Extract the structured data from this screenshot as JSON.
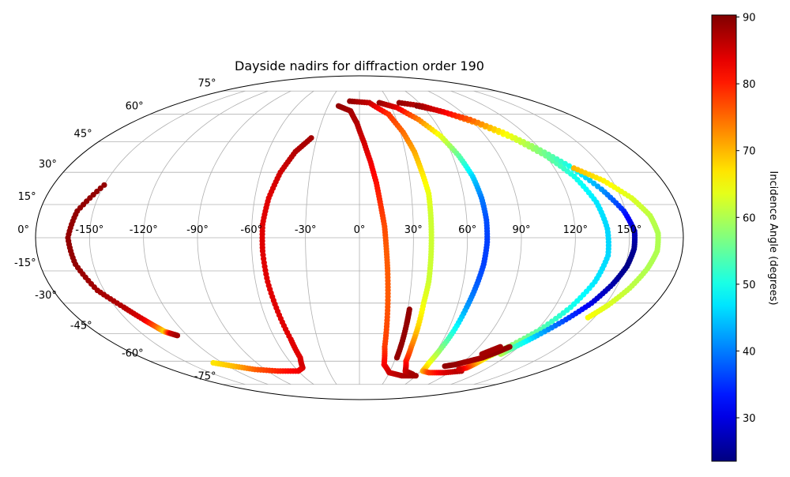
{
  "chart_data": {
    "type": "scatter",
    "projection": "mollweide",
    "title": "Dayside nadirs for diffraction order 190",
    "xlabel": "",
    "ylabel": "",
    "grid": true,
    "lon_ticks": [
      "-150°",
      "-120°",
      "-90°",
      "-60°",
      "-30°",
      "0°",
      "30°",
      "60°",
      "90°",
      "120°",
      "150°"
    ],
    "lat_ticks": [
      "75°",
      "60°",
      "45°",
      "30°",
      "15°",
      "0°",
      "-15°",
      "-30°",
      "-45°",
      "-60°",
      "-75°"
    ],
    "colorbar": {
      "label": "Incidence Angle (degrees)",
      "range": [
        23.5,
        90.3
      ],
      "colormap": "jet",
      "ticks": [
        "30",
        "40",
        "50",
        "60",
        "70",
        "80",
        "90"
      ]
    },
    "series": [
      {
        "values": [
          {
            "x": -150,
            "y": 24,
            "c": 89
          },
          {
            "x": -159,
            "y": 12,
            "c": 89
          },
          {
            "x": -162,
            "y": 0,
            "c": 89
          },
          {
            "x": -160,
            "y": -12,
            "c": 89
          },
          {
            "x": -154,
            "y": -24,
            "c": 88
          },
          {
            "x": -145,
            "y": -32,
            "c": 87
          },
          {
            "x": -139,
            "y": -38,
            "c": 84
          },
          {
            "x": -135,
            "y": -42,
            "c": 75
          },
          {
            "x": -133,
            "y": -44,
            "c": 68
          },
          {
            "x": -130,
            "y": -45,
            "c": 85
          },
          {
            "x": -127,
            "y": -46,
            "c": 88
          }
        ]
      },
      {
        "values": [
          {
            "x": -34,
            "y": 47,
            "c": 88
          },
          {
            "x": -42,
            "y": 40,
            "c": 87
          },
          {
            "x": -48,
            "y": 30,
            "c": 85
          },
          {
            "x": -52,
            "y": 18,
            "c": 84
          },
          {
            "x": -54,
            "y": 6,
            "c": 84
          },
          {
            "x": -54,
            "y": -6,
            "c": 84
          },
          {
            "x": -53,
            "y": -20,
            "c": 84
          },
          {
            "x": -51,
            "y": -34,
            "c": 84
          },
          {
            "x": -49,
            "y": -48,
            "c": 84
          },
          {
            "x": -49,
            "y": -58,
            "c": 84
          },
          {
            "x": -53,
            "y": -64,
            "c": 85
          },
          {
            "x": -60,
            "y": -66,
            "c": 83
          },
          {
            "x": -80,
            "y": -66,
            "c": 80
          },
          {
            "x": -100,
            "y": -65,
            "c": 76
          },
          {
            "x": -115,
            "y": -63,
            "c": 70
          },
          {
            "x": -128,
            "y": -61,
            "c": 67
          }
        ]
      },
      {
        "values": [
          {
            "x": -20,
            "y": 65,
            "c": 89
          },
          {
            "x": -8,
            "y": 62,
            "c": 88
          },
          {
            "x": -2,
            "y": 55,
            "c": 87
          },
          {
            "x": 3,
            "y": 45,
            "c": 85
          },
          {
            "x": 7,
            "y": 35,
            "c": 83
          },
          {
            "x": 10,
            "y": 25,
            "c": 81
          },
          {
            "x": 12,
            "y": 15,
            "c": 79
          },
          {
            "x": 14,
            "y": 5,
            "c": 77
          },
          {
            "x": 15,
            "y": -5,
            "c": 76
          },
          {
            "x": 16,
            "y": -15,
            "c": 76
          },
          {
            "x": 17,
            "y": -27,
            "c": 76
          },
          {
            "x": 18,
            "y": -40,
            "c": 77
          },
          {
            "x": 19,
            "y": -52,
            "c": 78
          },
          {
            "x": 22,
            "y": -62,
            "c": 82
          },
          {
            "x": 30,
            "y": -67,
            "c": 85
          },
          {
            "x": 45,
            "y": -69,
            "c": 87
          },
          {
            "x": 60,
            "y": -69,
            "c": 88
          }
        ]
      },
      {
        "values": [
          {
            "x": -10,
            "y": 68,
            "c": 89
          },
          {
            "x": 10,
            "y": 67,
            "c": 86
          },
          {
            "x": 25,
            "y": 60,
            "c": 79
          },
          {
            "x": 32,
            "y": 50,
            "c": 75
          },
          {
            "x": 36,
            "y": 40,
            "c": 71
          },
          {
            "x": 38,
            "y": 30,
            "c": 67
          },
          {
            "x": 40,
            "y": 20,
            "c": 64
          },
          {
            "x": 40,
            "y": 10,
            "c": 62
          },
          {
            "x": 40,
            "y": 0,
            "c": 62
          },
          {
            "x": 40,
            "y": -10,
            "c": 62
          },
          {
            "x": 40,
            "y": -20,
            "c": 62
          },
          {
            "x": 39,
            "y": -30,
            "c": 64
          },
          {
            "x": 39,
            "y": -42,
            "c": 68
          },
          {
            "x": 39,
            "y": -52,
            "c": 74
          },
          {
            "x": 40,
            "y": -60,
            "c": 80
          },
          {
            "x": 45,
            "y": -66,
            "c": 85
          },
          {
            "x": 55,
            "y": -68,
            "c": 88
          }
        ]
      },
      {
        "values": [
          {
            "x": 31,
            "y": -33,
            "c": 89
          },
          {
            "x": 31,
            "y": -40,
            "c": 89
          },
          {
            "x": 31,
            "y": -50,
            "c": 89
          },
          {
            "x": 31,
            "y": -58,
            "c": 89
          }
        ]
      },
      {
        "values": [
          {
            "x": 20,
            "y": 67,
            "c": 89
          },
          {
            "x": 35,
            "y": 64,
            "c": 84
          },
          {
            "x": 48,
            "y": 57,
            "c": 74
          },
          {
            "x": 58,
            "y": 48,
            "c": 64
          },
          {
            "x": 64,
            "y": 38,
            "c": 55
          },
          {
            "x": 68,
            "y": 28,
            "c": 46
          },
          {
            "x": 70,
            "y": 18,
            "c": 40
          },
          {
            "x": 71,
            "y": 8,
            "c": 37
          },
          {
            "x": 71,
            "y": -2,
            "c": 36
          },
          {
            "x": 70,
            "y": -12,
            "c": 36
          },
          {
            "x": 68,
            "y": -22,
            "c": 38
          },
          {
            "x": 66,
            "y": -32,
            "c": 42
          },
          {
            "x": 64,
            "y": -44,
            "c": 50
          },
          {
            "x": 62,
            "y": -54,
            "c": 58
          },
          {
            "x": 61,
            "y": -61,
            "c": 64
          },
          {
            "x": 62,
            "y": -66,
            "c": 70
          },
          {
            "x": 70,
            "y": -67,
            "c": 78
          },
          {
            "x": 85,
            "y": -67,
            "c": 84
          },
          {
            "x": 100,
            "y": -66,
            "c": 87
          }
        ]
      },
      {
        "values": [
          {
            "x": 40,
            "y": 67,
            "c": 89
          },
          {
            "x": 60,
            "y": 65,
            "c": 86
          },
          {
            "x": 75,
            "y": 61,
            "c": 80
          },
          {
            "x": 92,
            "y": 55,
            "c": 72
          },
          {
            "x": 108,
            "y": 47,
            "c": 63
          },
          {
            "x": 120,
            "y": 38,
            "c": 56
          },
          {
            "x": 129,
            "y": 28,
            "c": 50
          },
          {
            "x": 135,
            "y": 16,
            "c": 47
          },
          {
            "x": 138,
            "y": 4,
            "c": 46
          },
          {
            "x": 139,
            "y": -8,
            "c": 46
          },
          {
            "x": 136,
            "y": -20,
            "c": 47
          },
          {
            "x": 130,
            "y": -32,
            "c": 50
          },
          {
            "x": 122,
            "y": -43,
            "c": 54
          },
          {
            "x": 112,
            "y": -52,
            "c": 58
          },
          {
            "x": 105,
            "y": -58,
            "c": 64
          },
          {
            "x": 102,
            "y": -62,
            "c": 72
          },
          {
            "x": 100,
            "y": -64,
            "c": 79
          },
          {
            "x": 95,
            "y": -65,
            "c": 85
          }
        ]
      },
      {
        "values": [
          {
            "x": 55,
            "y": 65,
            "c": 89
          },
          {
            "x": 72,
            "y": 62,
            "c": 84
          },
          {
            "x": 90,
            "y": 57,
            "c": 76
          },
          {
            "x": 105,
            "y": 50,
            "c": 66
          },
          {
            "x": 118,
            "y": 42,
            "c": 58
          },
          {
            "x": 130,
            "y": 33,
            "c": 50
          },
          {
            "x": 141,
            "y": 22,
            "c": 42
          },
          {
            "x": 149,
            "y": 12,
            "c": 34
          },
          {
            "x": 153,
            "y": 3,
            "c": 28
          },
          {
            "x": 153,
            "y": -5,
            "c": 25
          },
          {
            "x": 151,
            "y": -13,
            "c": 24
          },
          {
            "x": 147,
            "y": -21,
            "c": 26
          },
          {
            "x": 141,
            "y": -30,
            "c": 30
          },
          {
            "x": 133,
            "y": -38,
            "c": 36
          },
          {
            "x": 124,
            "y": -46,
            "c": 44
          },
          {
            "x": 117,
            "y": -52,
            "c": 52
          },
          {
            "x": 113,
            "y": -56,
            "c": 60
          }
        ]
      },
      {
        "values": [
          {
            "x": 132,
            "y": 32,
            "c": 70
          },
          {
            "x": 145,
            "y": 26,
            "c": 66
          },
          {
            "x": 156,
            "y": 18,
            "c": 63
          },
          {
            "x": 163,
            "y": 10,
            "c": 61
          },
          {
            "x": 166,
            "y": 2,
            "c": 60
          },
          {
            "x": 166,
            "y": -6,
            "c": 60
          },
          {
            "x": 163,
            "y": -14,
            "c": 60
          },
          {
            "x": 158,
            "y": -23,
            "c": 61
          },
          {
            "x": 152,
            "y": -31,
            "c": 63
          },
          {
            "x": 146,
            "y": -37,
            "c": 65
          }
        ]
      },
      {
        "values": [
          {
            "x": 78,
            "y": -63,
            "c": 89
          },
          {
            "x": 86,
            "y": -62,
            "c": 89
          },
          {
            "x": 94,
            "y": -60,
            "c": 88
          },
          {
            "x": 102,
            "y": -58,
            "c": 88
          },
          {
            "x": 108,
            "y": -55,
            "c": 89
          },
          {
            "x": 113,
            "y": -52,
            "c": 89
          }
        ]
      },
      {
        "values": [
          {
            "x": 98,
            "y": -56,
            "c": 88
          },
          {
            "x": 102,
            "y": -54,
            "c": 88
          },
          {
            "x": 106,
            "y": -52,
            "c": 88
          }
        ]
      }
    ]
  }
}
